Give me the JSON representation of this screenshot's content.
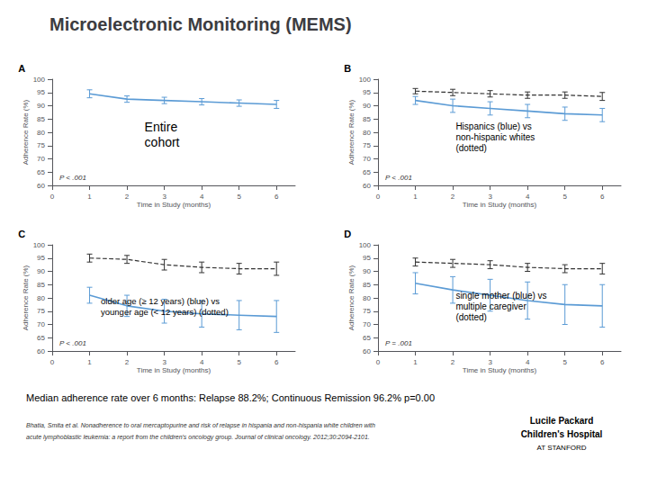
{
  "title": "Microelectronic Monitoring (MEMS)",
  "annotations": [
    "Median adherence rate over 6 months: Relapse 88.2%; Continuous Remission 96.2% p=0.00",
    "Bhatia, Smita et al. Nonadherence to oral mercaptopurine and risk of relapse in hispania and non-hispania white children with",
    "acute lymphoblastic leukemia: a report from the children's oncology group. Journal of clinical oncology. 2012;30:2094-2101.",
    "Lucile Packard",
    "Children's Hospital",
    "AT STANFORD"
  ],
  "chart_data": [
    {
      "type": "line",
      "title": "A",
      "xlabel": "Time in Study (months)",
      "ylabel": "Adherence Rate (%)",
      "x": [
        1,
        2,
        3,
        4,
        5,
        6
      ],
      "xlim": [
        0,
        6.5
      ],
      "xticks": [
        0,
        1,
        2,
        3,
        4,
        5,
        6
      ],
      "ylim": [
        60,
        100
      ],
      "yticks": [
        60,
        65,
        70,
        75,
        80,
        85,
        90,
        95,
        100
      ],
      "grid": false,
      "annotations": [
        "Entire\ncohort",
        "P < .001"
      ],
      "series": [
        {
          "color": "#5b9bd5",
          "line_style": "solid",
          "values": [
            94.5,
            92.5,
            92.0,
            91.5,
            91.0,
            90.5
          ],
          "errors": [
            1.5,
            1.2,
            1.2,
            1.2,
            1.2,
            1.5
          ]
        }
      ]
    },
    {
      "type": "line",
      "title": "B",
      "xlabel": "Time in Study (months)",
      "ylabel": "Adherence Rate (%)",
      "x": [
        1,
        2,
        3,
        4,
        5,
        6
      ],
      "xlim": [
        0,
        6.5
      ],
      "xticks": [
        0,
        1,
        2,
        3,
        4,
        5,
        6
      ],
      "ylim": [
        60,
        100
      ],
      "yticks": [
        60,
        65,
        70,
        75,
        80,
        85,
        90,
        95,
        100
      ],
      "grid": false,
      "annotations": [
        "Hispanics (blue) vs\nnon-hispanic whites\n(dotted)",
        "P < .001"
      ],
      "series": [
        {
          "color": "#5b9bd5",
          "line_style": "solid",
          "values": [
            92.0,
            90.0,
            89.0,
            88.0,
            87.0,
            86.5
          ],
          "errors": [
            1.5,
            2.5,
            2.5,
            2.5,
            2.5,
            2.5
          ]
        },
        {
          "color": "#333333",
          "line_style": "dashed",
          "values": [
            95.5,
            95.0,
            94.5,
            94.0,
            94.0,
            93.5
          ],
          "errors": [
            1.0,
            1.2,
            1.2,
            1.2,
            1.2,
            1.5
          ]
        }
      ]
    },
    {
      "type": "line",
      "title": "C",
      "xlabel": "Time in Study (months)",
      "ylabel": "Adherence Rate (%)",
      "x": [
        1,
        2,
        3,
        4,
        5,
        6
      ],
      "xlim": [
        0,
        6.5
      ],
      "xticks": [
        0,
        1,
        2,
        3,
        4,
        5,
        6
      ],
      "ylim": [
        60,
        100
      ],
      "yticks": [
        60,
        65,
        70,
        75,
        80,
        85,
        90,
        95,
        100
      ],
      "grid": false,
      "annotations": [
        "older age (≥ 12 years) (blue) vs\nyounger age (< 12 years) (dotted)",
        "P < .001"
      ],
      "series": [
        {
          "color": "#5b9bd5",
          "line_style": "solid",
          "values": [
            81.0,
            77.0,
            75.0,
            74.0,
            73.5,
            73.0
          ],
          "errors": [
            3.0,
            4.0,
            4.5,
            5.0,
            5.5,
            6.0
          ]
        },
        {
          "color": "#333333",
          "line_style": "dashed",
          "values": [
            95.0,
            94.5,
            92.5,
            91.5,
            91.0,
            91.0
          ],
          "errors": [
            1.5,
            1.5,
            2.0,
            2.0,
            2.0,
            2.5
          ]
        }
      ]
    },
    {
      "type": "line",
      "title": "D",
      "xlabel": "Time in Study (months)",
      "ylabel": "Adherence Rate (%)",
      "x": [
        1,
        2,
        3,
        4,
        5,
        6
      ],
      "xlim": [
        0,
        6.5
      ],
      "xticks": [
        0,
        1,
        2,
        3,
        4,
        5,
        6
      ],
      "ylim": [
        60,
        100
      ],
      "yticks": [
        60,
        65,
        70,
        75,
        80,
        85,
        90,
        95,
        100
      ],
      "grid": false,
      "annotations": [
        "single mother (blue) vs\nmultiple caregiver\n(dotted)",
        "P = .001"
      ],
      "series": [
        {
          "color": "#5b9bd5",
          "line_style": "solid",
          "values": [
            85.5,
            83.0,
            81.0,
            79.0,
            77.5,
            77.0
          ],
          "errors": [
            4.0,
            5.0,
            6.0,
            7.0,
            7.5,
            8.0
          ]
        },
        {
          "color": "#333333",
          "line_style": "dashed",
          "values": [
            93.5,
            93.0,
            92.5,
            91.5,
            91.0,
            91.0
          ],
          "errors": [
            1.5,
            1.5,
            1.5,
            1.5,
            1.5,
            2.0
          ]
        }
      ]
    }
  ]
}
